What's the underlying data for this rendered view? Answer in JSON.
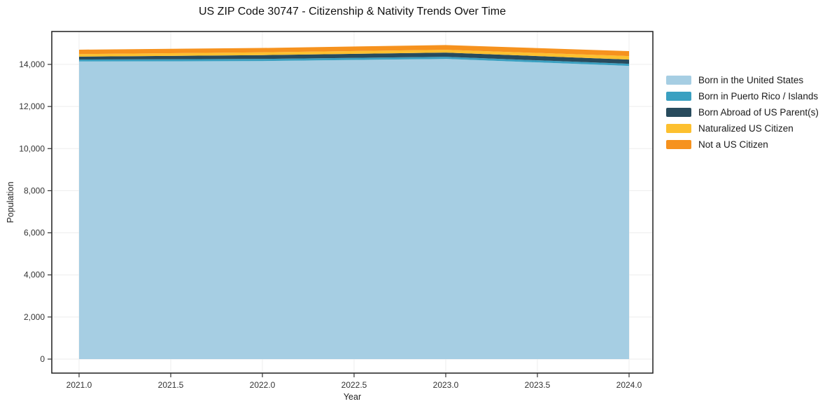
{
  "title": "US ZIP Code 30747 - Citizenship & Nativity Trends Over Time",
  "chart_data": {
    "type": "area",
    "stacked": true,
    "title": "US ZIP Code 30747 - Citizenship & Nativity Trends Over Time",
    "xlabel": "Year",
    "ylabel": "Population",
    "x": [
      2021,
      2022,
      2023,
      2024
    ],
    "series": [
      {
        "name": "Born in the United States",
        "color": "#A6CEE3",
        "values": [
          14140,
          14160,
          14260,
          13930
        ]
      },
      {
        "name": "Born in Puerto Rico / Islands",
        "color": "#3AA0C1",
        "values": [
          90,
          100,
          100,
          100
        ]
      },
      {
        "name": "Born Abroad of US Parent(s)",
        "color": "#284B5D",
        "values": [
          140,
          180,
          200,
          200
        ]
      },
      {
        "name": "Naturalized US Citizen",
        "color": "#FDC02F",
        "values": [
          120,
          135,
          135,
          165
        ]
      },
      {
        "name": "Not a US Citizen",
        "color": "#F6921E",
        "values": [
          210,
          205,
          225,
          235
        ]
      }
    ],
    "totals": [
      14700,
      14780,
      14920,
      14630
    ],
    "x_tick_labels": [
      "2021.0",
      "2021.5",
      "2022.0",
      "2022.5",
      "2023.0",
      "2023.5",
      "2024.0"
    ],
    "x_tick_values": [
      2021,
      2021.5,
      2022,
      2022.5,
      2023,
      2023.5,
      2024
    ],
    "y_tick_labels": [
      "0",
      "2,000",
      "4,000",
      "6,000",
      "8,000",
      "10,000",
      "12,000",
      "14,000"
    ],
    "y_tick_values": [
      0,
      2000,
      4000,
      6000,
      8000,
      10000,
      12000,
      14000
    ],
    "xlim": [
      2020.85,
      2024.13
    ],
    "ylim": [
      -665,
      15565
    ],
    "grid": true,
    "legend_position": "outside-right",
    "colors": {
      "gridline": "#ededed",
      "frame": "#1f1f1f",
      "tick": "#333333",
      "tick_label": "#333333",
      "background": "#ffffff"
    }
  }
}
